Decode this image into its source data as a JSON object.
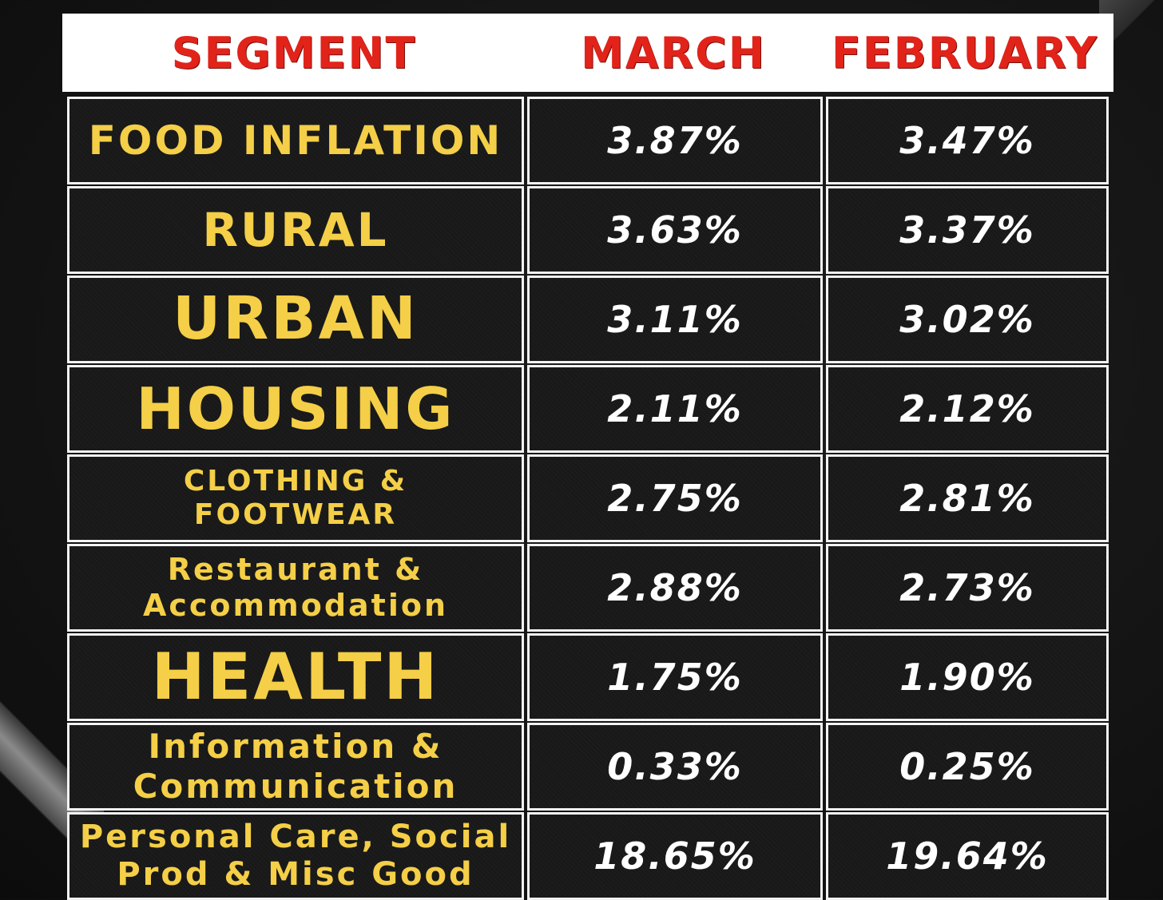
{
  "table": {
    "headers": {
      "segment": "SEGMENT",
      "march": "MARCH",
      "february": "FEBRUARY"
    },
    "rows": [
      {
        "segment_lines": [
          "FOOD INFLATION"
        ],
        "march": "3.87%",
        "february": "3.47%"
      },
      {
        "segment_lines": [
          "RURAL"
        ],
        "march": "3.63%",
        "february": "3.37%"
      },
      {
        "segment_lines": [
          "URBAN"
        ],
        "march": "3.11%",
        "february": "3.02%"
      },
      {
        "segment_lines": [
          "HOUSING"
        ],
        "march": "2.11%",
        "february": "2.12%"
      },
      {
        "segment_lines": [
          "CLOTHING &",
          "FOOTWEAR"
        ],
        "march": "2.75%",
        "february": "2.81%"
      },
      {
        "segment_lines": [
          "Restaurant &",
          "Accommodation"
        ],
        "march": "2.88%",
        "february": "2.73%"
      },
      {
        "segment_lines": [
          "HEALTH"
        ],
        "march": "1.75%",
        "february": "1.90%"
      },
      {
        "segment_lines": [
          "Information &",
          "Communication"
        ],
        "march": "0.33%",
        "february": "0.25%"
      },
      {
        "segment_lines": [
          "Personal Care, Social",
          "Prod & Misc Good"
        ],
        "march": "18.65%",
        "february": "19.64%"
      }
    ]
  },
  "colors": {
    "header_text": "#e2231a",
    "segment_text": "#f4cf47",
    "value_text": "#ffffff",
    "cell_background": "#181818",
    "header_background": "#ffffff"
  }
}
